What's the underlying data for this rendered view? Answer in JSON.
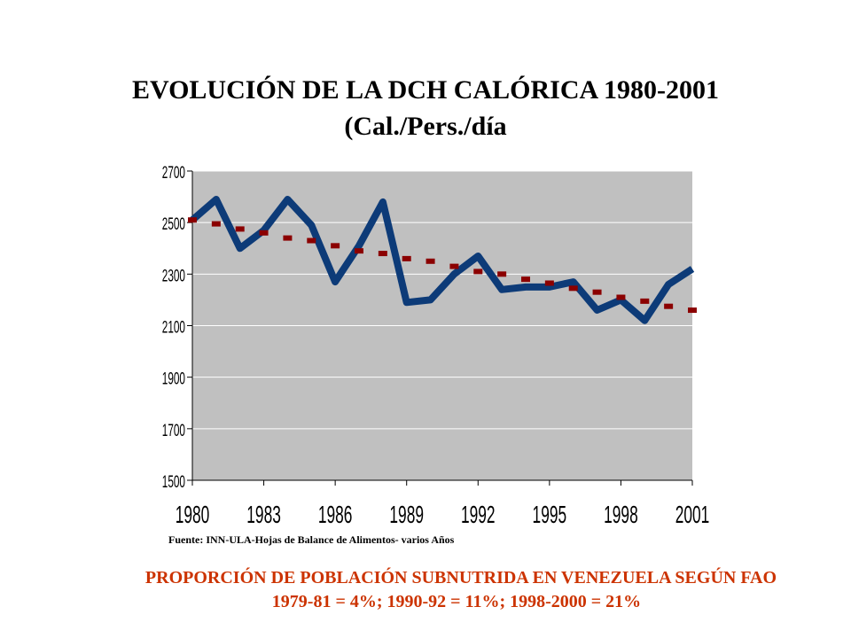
{
  "title": "EVOLUCIÓN DE LA DCH CALÓRICA 1980-2001",
  "subtitle": "(Cal./Pers./día",
  "source": "Fuente: INN-ULA-Hojas de Balance de Alimentos- varios Años",
  "note_line1": "PROPORCIÓN DE POBLACIÓN SUBNUTRIDA EN VENEZUELA SEGÚN FAO",
  "note_line2": "1979-81 = 4%; 1990-92 = 11%; 1998-2000 = 21%",
  "colors": {
    "plot_bg": "#c0c0c0",
    "series_line": "#0d3b78",
    "trend": "#8b0000",
    "note": "#cc3300"
  },
  "chart_data": {
    "type": "line",
    "x": [
      1980,
      1981,
      1982,
      1983,
      1984,
      1985,
      1986,
      1987,
      1988,
      1989,
      1990,
      1991,
      1992,
      1993,
      1994,
      1995,
      1996,
      1997,
      1998,
      1999,
      2000,
      2001
    ],
    "series": [
      {
        "style": "solid-line",
        "values": [
          2510,
          2590,
          2400,
          2470,
          2590,
          2490,
          2270,
          2410,
          2580,
          2190,
          2200,
          2300,
          2370,
          2240,
          2250,
          2250,
          2270,
          2160,
          2200,
          2120,
          2260,
          2320
        ]
      },
      {
        "style": "dashed-trend",
        "values": [
          2510,
          2495,
          2475,
          2460,
          2440,
          2430,
          2410,
          2390,
          2380,
          2360,
          2350,
          2330,
          2310,
          2300,
          2280,
          2265,
          2245,
          2230,
          2210,
          2195,
          2175,
          2160
        ]
      }
    ],
    "ylim": [
      1500,
      2700
    ],
    "yticks": [
      "1500",
      "1700",
      "1900",
      "2100",
      "2300",
      "2500",
      "2700"
    ],
    "xticks": [
      "1980",
      "1983",
      "1986",
      "1989",
      "1992",
      "1995",
      "1998",
      "2001"
    ],
    "grid": true
  }
}
